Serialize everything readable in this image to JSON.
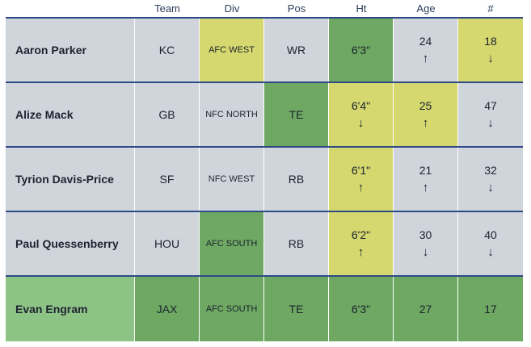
{
  "headers": {
    "name": "",
    "team": "Team",
    "div": "Div",
    "pos": "Pos",
    "ht": "Ht",
    "age": "Age",
    "num": "#"
  },
  "colors": {
    "yellow": "#d4d86e",
    "green": "#6ea862",
    "light_green": "#8ec386",
    "grey": "#d0d5dc",
    "divider": "#2e4a86"
  },
  "rows": [
    {
      "name": "Aaron Parker",
      "team": "KC",
      "div": "AFC WEST",
      "pos": "WR",
      "ht": "6'3\"",
      "ht_arrow": "",
      "age": "24",
      "age_arrow": "↑",
      "num": "18",
      "num_arrow": "↓"
    },
    {
      "name": "Alize Mack",
      "team": "GB",
      "div": "NFC NORTH",
      "pos": "TE",
      "ht": "6'4\"",
      "ht_arrow": "↓",
      "age": "25",
      "age_arrow": "↑",
      "num": "47",
      "num_arrow": "↓"
    },
    {
      "name": "Tyrion Davis-Price",
      "team": "SF",
      "div": "NFC WEST",
      "pos": "RB",
      "ht": "6'1\"",
      "ht_arrow": "↑",
      "age": "21",
      "age_arrow": "↑",
      "num": "32",
      "num_arrow": "↓"
    },
    {
      "name": "Paul Quessenberry",
      "team": "HOU",
      "div": "AFC SOUTH",
      "pos": "RB",
      "ht": "6'2\"",
      "ht_arrow": "↑",
      "age": "30",
      "age_arrow": "↓",
      "num": "40",
      "num_arrow": "↓"
    },
    {
      "name": "Evan Engram",
      "team": "JAX",
      "div": "AFC SOUTH",
      "pos": "TE",
      "ht": "6'3\"",
      "ht_arrow": "",
      "age": "27",
      "age_arrow": "",
      "num": "17",
      "num_arrow": ""
    }
  ]
}
